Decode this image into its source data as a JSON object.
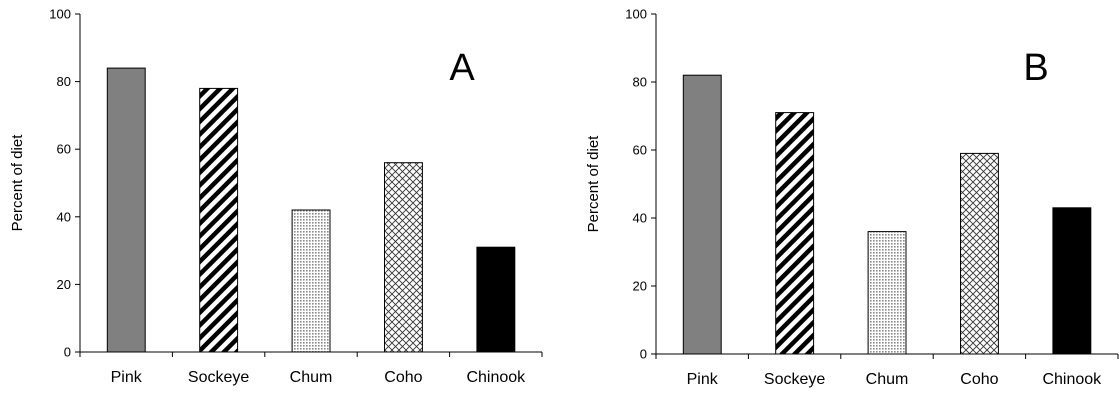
{
  "chart_data": [
    {
      "type": "bar",
      "panel_label": "A",
      "categories": [
        "Pink",
        "Sockeye",
        "Chum",
        "Coho",
        "Chinook"
      ],
      "values": [
        84,
        78,
        42,
        56,
        31
      ],
      "ylabel": "Percent of diet",
      "ylim": [
        0,
        100
      ],
      "yticks": [
        0,
        20,
        40,
        60,
        80,
        100
      ],
      "grid": false,
      "bar_fills": [
        "gray",
        "diagonal-stripes",
        "dots",
        "crosshatch",
        "black"
      ],
      "colors": [
        "#808080",
        "#000000",
        "#c8c8c8",
        "#a0a0a0",
        "#000000"
      ]
    },
    {
      "type": "bar",
      "panel_label": "B",
      "categories": [
        "Pink",
        "Sockeye",
        "Chum",
        "Coho",
        "Chinook"
      ],
      "values": [
        82,
        71,
        36,
        59,
        43
      ],
      "ylabel": "Percent of diet",
      "ylim": [
        0,
        100
      ],
      "yticks": [
        0,
        20,
        40,
        60,
        80,
        100
      ],
      "grid": false,
      "bar_fills": [
        "gray",
        "diagonal-stripes",
        "dots",
        "crosshatch",
        "black"
      ],
      "colors": [
        "#808080",
        "#000000",
        "#c8c8c8",
        "#a0a0a0",
        "#000000"
      ]
    }
  ]
}
